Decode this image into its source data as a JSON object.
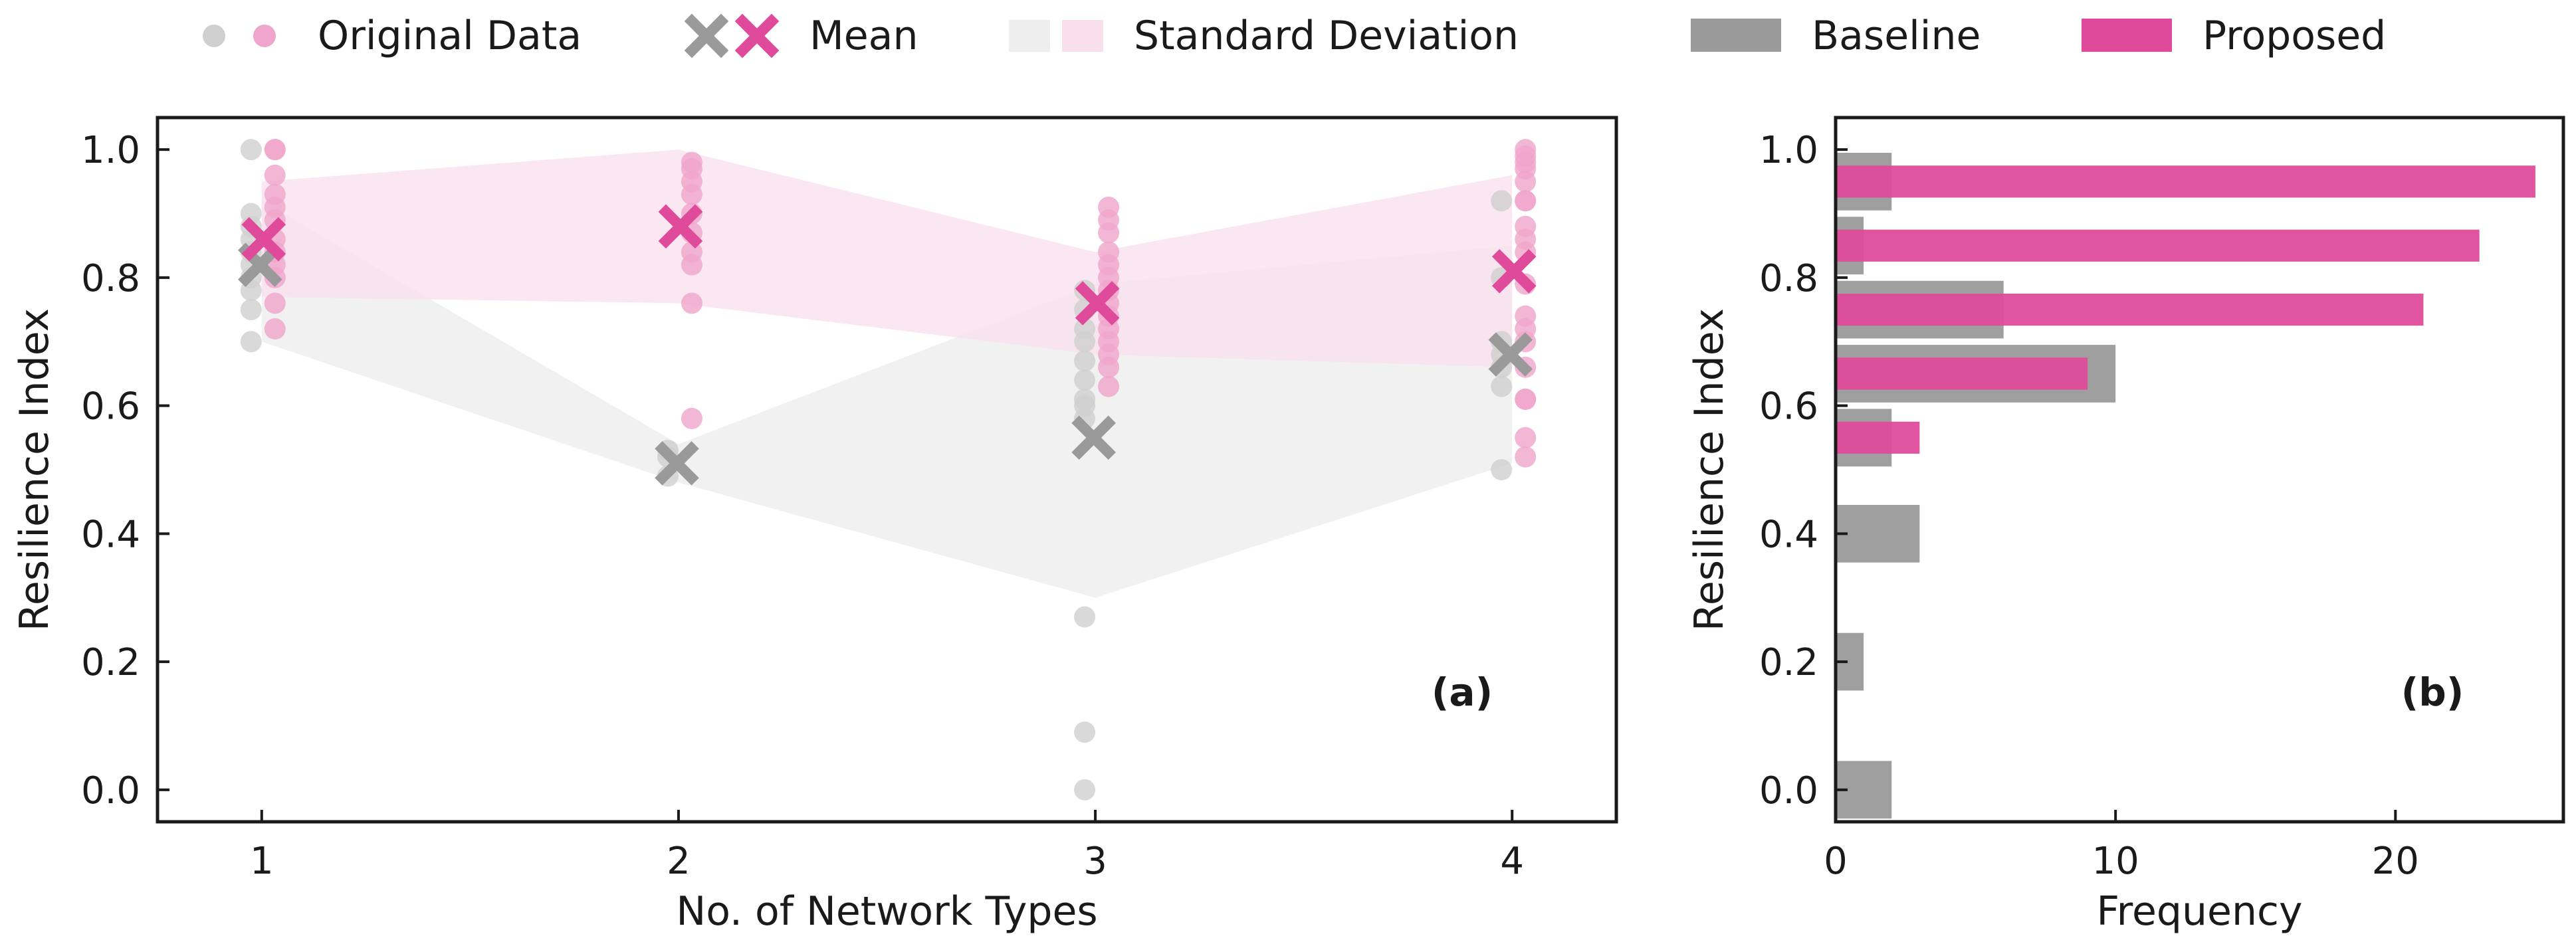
{
  "colors": {
    "baseline": "#9a9a9a",
    "proposed": "#df4b9a",
    "baseline_point": "#cfcfcf",
    "proposed_point": "#f0a5cc",
    "baseline_band": "#eeeeee",
    "proposed_band": "#f9dfec"
  },
  "legend": {
    "original": "Original Data",
    "mean": "Mean",
    "std": "Standard Deviation",
    "baseline": "Baseline",
    "proposed": "Proposed"
  },
  "chart_data": [
    {
      "type": "scatter",
      "panel_label": "(a)",
      "xlabel": "No. of Network Types",
      "ylabel": "Resilience Index",
      "xlim": [
        0.75,
        4.25
      ],
      "ylim": [
        -0.05,
        1.05
      ],
      "x_ticks": [
        1,
        2,
        3,
        4
      ],
      "y_ticks": [
        0.0,
        0.2,
        0.4,
        0.6,
        0.8,
        1.0
      ],
      "categories": [
        1,
        2,
        3,
        4
      ],
      "series": [
        {
          "name": "Baseline",
          "points": [
            [
              1.0,
              0.7,
              0.75,
              0.78,
              0.8,
              0.82,
              0.84,
              0.86,
              0.88,
              0.9
            ],
            [
              0.49,
              0.52,
              0.53
            ],
            [
              0.0,
              0.09,
              0.27,
              0.58,
              0.6,
              0.61,
              0.64,
              0.67,
              0.7,
              0.72,
              0.75,
              0.78
            ],
            [
              0.5,
              0.63,
              0.66,
              0.68,
              0.7,
              0.8,
              0.92
            ]
          ],
          "mean": [
            0.82,
            0.51,
            0.55,
            0.68
          ],
          "std_lower": [
            0.7,
            0.48,
            0.3,
            0.51
          ],
          "std_upper": [
            0.92,
            0.54,
            0.79,
            0.85
          ]
        },
        {
          "name": "Proposed",
          "points": [
            [
              0.72,
              0.76,
              0.8,
              0.82,
              0.84,
              0.86,
              0.89,
              0.91,
              0.93,
              0.96,
              1.0,
              1.0
            ],
            [
              0.58,
              0.76,
              0.82,
              0.84,
              0.87,
              0.9,
              0.93,
              0.95,
              0.97,
              0.98
            ],
            [
              0.63,
              0.66,
              0.68,
              0.7,
              0.72,
              0.74,
              0.76,
              0.78,
              0.8,
              0.82,
              0.84,
              0.87,
              0.89,
              0.91
            ],
            [
              0.52,
              0.55,
              0.61,
              0.61,
              0.66,
              0.7,
              0.72,
              0.74,
              0.79,
              0.84,
              0.86,
              0.88,
              0.92,
              0.92,
              0.95,
              0.97,
              0.98,
              0.99,
              1.0
            ]
          ],
          "mean": [
            0.86,
            0.88,
            0.76,
            0.81
          ],
          "std_lower": [
            0.77,
            0.76,
            0.68,
            0.66
          ],
          "std_upper": [
            0.95,
            1.0,
            0.84,
            0.96
          ]
        }
      ]
    },
    {
      "type": "bar",
      "orientation": "horizontal",
      "panel_label": "(b)",
      "xlabel": "Frequency",
      "ylabel": "Resilience Index",
      "xlim": [
        0,
        26
      ],
      "ylim": [
        -0.05,
        1.05
      ],
      "x_ticks": [
        0,
        10,
        20
      ],
      "y_ticks": [
        0.0,
        0.2,
        0.4,
        0.6,
        0.8,
        1.0
      ],
      "series": [
        {
          "name": "Baseline",
          "bin_centers": [
            0.0,
            0.2,
            0.4,
            0.55,
            0.65,
            0.75,
            0.85,
            0.95
          ],
          "bin_height": 0.09,
          "values": [
            2,
            1,
            3,
            2,
            10,
            6,
            1,
            2
          ]
        },
        {
          "name": "Proposed",
          "bin_centers": [
            0.55,
            0.65,
            0.75,
            0.85,
            0.95
          ],
          "bin_height": 0.05,
          "values": [
            3,
            9,
            21,
            23,
            25
          ]
        }
      ]
    }
  ]
}
